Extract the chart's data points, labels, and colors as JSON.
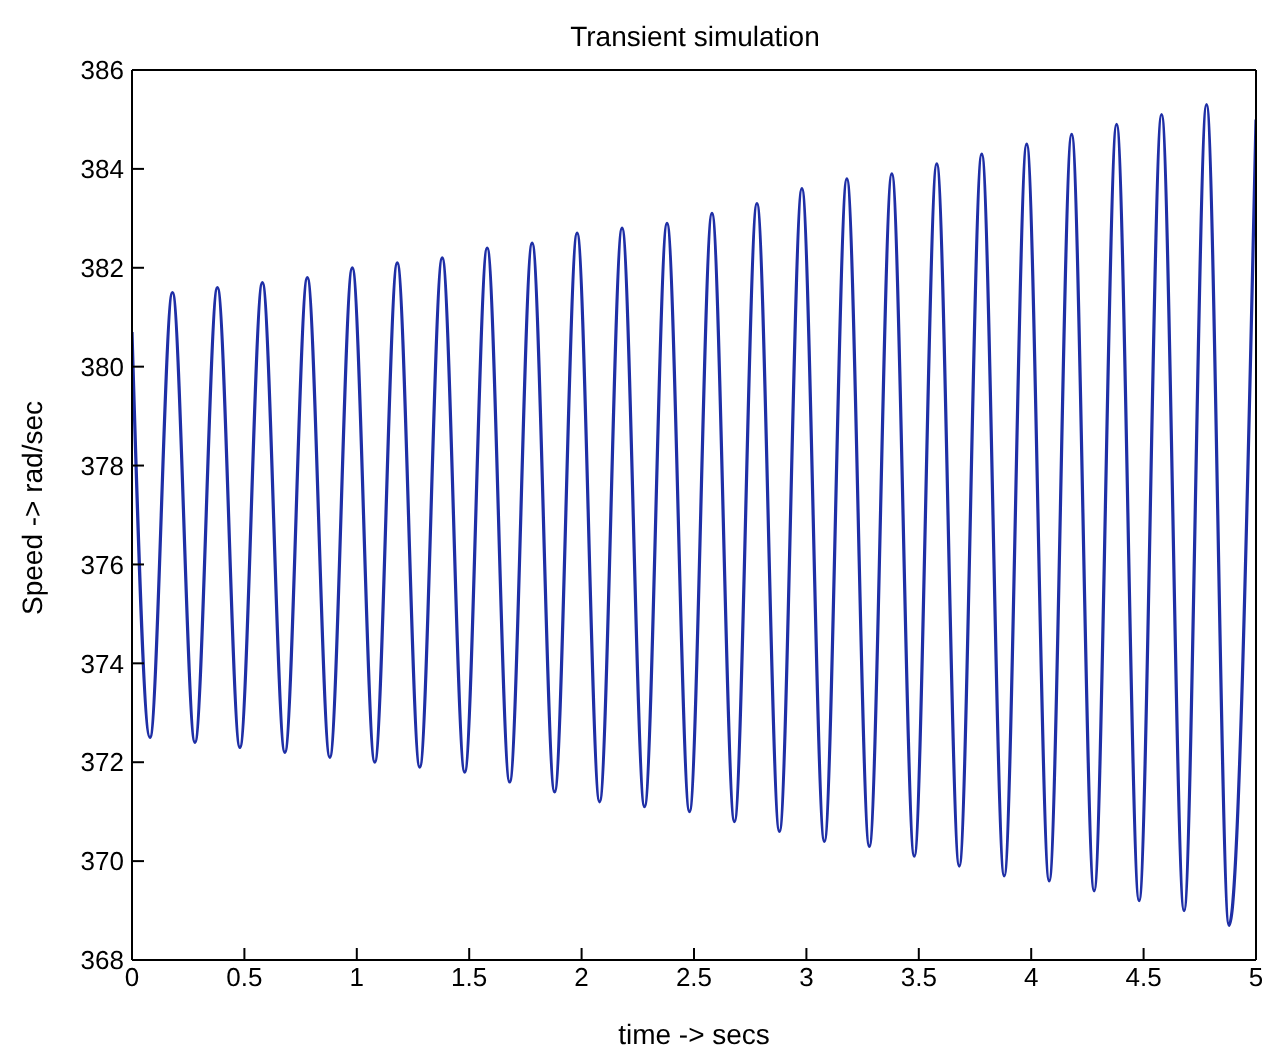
{
  "chart_data": {
    "type": "line",
    "title": "Transient simulation",
    "xlabel": "time -> secs",
    "ylabel": "Speed -> rad/sec",
    "x": [
      0,
      0.08,
      0.18,
      0.28,
      0.38,
      0.48,
      0.58,
      0.68,
      0.78,
      0.88,
      0.98,
      1.08,
      1.18,
      1.28,
      1.38,
      1.48,
      1.58,
      1.68,
      1.78,
      1.88,
      1.98,
      2.08,
      2.18,
      2.28,
      2.38,
      2.48,
      2.58,
      2.68,
      2.78,
      2.88,
      2.98,
      3.08,
      3.18,
      3.28,
      3.38,
      3.48,
      3.58,
      3.68,
      3.78,
      3.88,
      3.98,
      4.08,
      4.18,
      4.28,
      4.38,
      4.48,
      4.58,
      4.68,
      4.78,
      4.88,
      5
    ],
    "series": [
      {
        "color": "#1f2fa6",
        "values": [
          380.7,
          372.5,
          381.5,
          372.4,
          381.6,
          372.3,
          381.7,
          372.2,
          381.8,
          372.1,
          382.0,
          372.0,
          382.1,
          371.9,
          382.2,
          371.8,
          382.4,
          371.6,
          382.5,
          371.4,
          382.7,
          371.2,
          382.8,
          371.1,
          382.9,
          371.0,
          383.1,
          370.8,
          383.3,
          370.6,
          383.6,
          370.4,
          383.8,
          370.3,
          383.9,
          370.1,
          384.1,
          369.9,
          384.3,
          369.7,
          384.5,
          369.6,
          384.7,
          369.4,
          384.9,
          369.2,
          385.1,
          369.0,
          385.3,
          368.7,
          385.0
        ]
      }
    ],
    "xlim": [
      0,
      5
    ],
    "xticks": [
      0,
      0.5,
      1,
      1.5,
      2,
      2.5,
      3,
      3.5,
      4,
      4.5,
      5
    ],
    "ylim": [
      368,
      386
    ],
    "yticks": [
      368,
      370,
      372,
      374,
      376,
      378,
      380,
      382,
      384,
      386
    ],
    "grid": false,
    "legend": false,
    "marker": "none",
    "line_style": "solid"
  }
}
